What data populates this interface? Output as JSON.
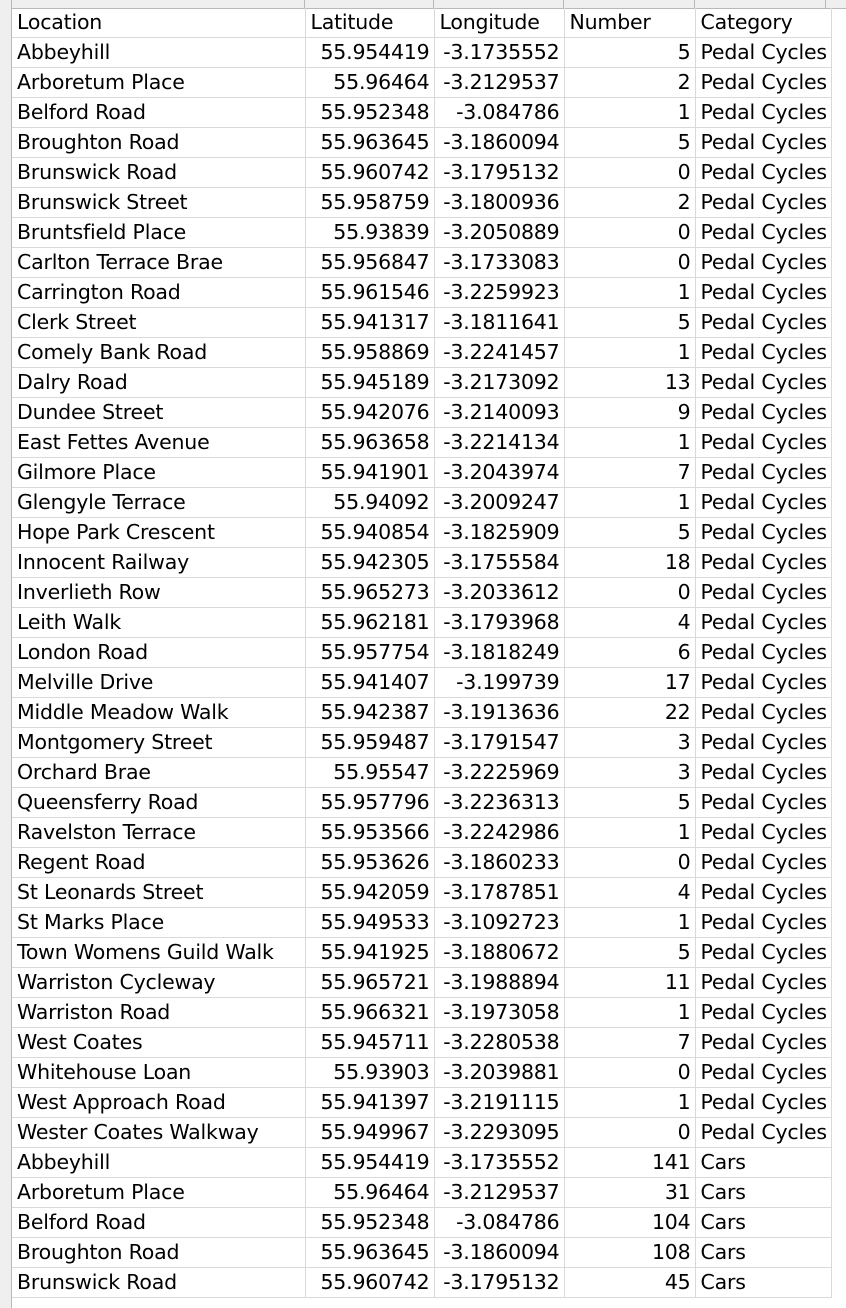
{
  "sheet": {
    "headers": [
      "Location",
      "Latitude",
      "Longitude",
      "Number",
      "Category"
    ],
    "rows": [
      [
        "Abbeyhill",
        "55.954419",
        "-3.1735552",
        "5",
        "Pedal Cycles"
      ],
      [
        "Arboretum Place",
        "55.96464",
        "-3.2129537",
        "2",
        "Pedal Cycles"
      ],
      [
        "Belford Road",
        "55.952348",
        "-3.084786",
        "1",
        "Pedal Cycles"
      ],
      [
        "Broughton Road",
        "55.963645",
        "-3.1860094",
        "5",
        "Pedal Cycles"
      ],
      [
        "Brunswick Road",
        "55.960742",
        "-3.1795132",
        "0",
        "Pedal Cycles"
      ],
      [
        "Brunswick Street",
        "55.958759",
        "-3.1800936",
        "2",
        "Pedal Cycles"
      ],
      [
        "Bruntsfield Place",
        "55.93839",
        "-3.2050889",
        "0",
        "Pedal Cycles"
      ],
      [
        "Carlton Terrace Brae",
        "55.956847",
        "-3.1733083",
        "0",
        "Pedal Cycles"
      ],
      [
        "Carrington Road",
        "55.961546",
        "-3.2259923",
        "1",
        "Pedal Cycles"
      ],
      [
        "Clerk Street",
        "55.941317",
        "-3.1811641",
        "5",
        "Pedal Cycles"
      ],
      [
        "Comely Bank Road",
        "55.958869",
        "-3.2241457",
        "1",
        "Pedal Cycles"
      ],
      [
        "Dalry Road",
        "55.945189",
        "-3.2173092",
        "13",
        "Pedal Cycles"
      ],
      [
        "Dundee Street",
        "55.942076",
        "-3.2140093",
        "9",
        "Pedal Cycles"
      ],
      [
        "East Fettes Avenue",
        "55.963658",
        "-3.2214134",
        "1",
        "Pedal Cycles"
      ],
      [
        "Gilmore Place",
        "55.941901",
        "-3.2043974",
        "7",
        "Pedal Cycles"
      ],
      [
        "Glengyle Terrace",
        "55.94092",
        "-3.2009247",
        "1",
        "Pedal Cycles"
      ],
      [
        "Hope Park Crescent",
        "55.940854",
        "-3.1825909",
        "5",
        "Pedal Cycles"
      ],
      [
        "Innocent Railway",
        "55.942305",
        "-3.1755584",
        "18",
        "Pedal Cycles"
      ],
      [
        "Inverlieth Row",
        "55.965273",
        "-3.2033612",
        "0",
        "Pedal Cycles"
      ],
      [
        "Leith Walk",
        "55.962181",
        "-3.1793968",
        "4",
        "Pedal Cycles"
      ],
      [
        "London Road",
        "55.957754",
        "-3.1818249",
        "6",
        "Pedal Cycles"
      ],
      [
        "Melville Drive",
        "55.941407",
        "-3.199739",
        "17",
        "Pedal Cycles"
      ],
      [
        "Middle Meadow Walk",
        "55.942387",
        "-3.1913636",
        "22",
        "Pedal Cycles"
      ],
      [
        "Montgomery Street",
        "55.959487",
        "-3.1791547",
        "3",
        "Pedal Cycles"
      ],
      [
        "Orchard Brae",
        "55.95547",
        "-3.2225969",
        "3",
        "Pedal Cycles"
      ],
      [
        "Queensferry Road",
        "55.957796",
        "-3.2236313",
        "5",
        "Pedal Cycles"
      ],
      [
        "Ravelston Terrace",
        "55.953566",
        "-3.2242986",
        "1",
        "Pedal Cycles"
      ],
      [
        "Regent Road",
        "55.953626",
        "-3.1860233",
        "0",
        "Pedal Cycles"
      ],
      [
        "St Leonards Street",
        "55.942059",
        "-3.1787851",
        "4",
        "Pedal Cycles"
      ],
      [
        "St Marks Place",
        "55.949533",
        "-3.1092723",
        "1",
        "Pedal Cycles"
      ],
      [
        "Town Womens Guild Walk",
        "55.941925",
        "-3.1880672",
        "5",
        "Pedal Cycles"
      ],
      [
        "Warriston Cycleway",
        "55.965721",
        "-3.1988894",
        "11",
        "Pedal Cycles"
      ],
      [
        "Warriston Road",
        "55.966321",
        "-3.1973058",
        "1",
        "Pedal Cycles"
      ],
      [
        "West Coates",
        "55.945711",
        "-3.2280538",
        "7",
        "Pedal Cycles"
      ],
      [
        "Whitehouse Loan",
        "55.93903",
        "-3.2039881",
        "0",
        "Pedal Cycles"
      ],
      [
        "West Approach Road",
        "55.941397",
        "-3.2191115",
        "1",
        "Pedal Cycles"
      ],
      [
        "Wester Coates Walkway",
        "55.949967",
        "-3.2293095",
        "0",
        "Pedal Cycles"
      ],
      [
        "Abbeyhill",
        "55.954419",
        "-3.1735552",
        "141",
        "Cars"
      ],
      [
        "Arboretum Place",
        "55.96464",
        "-3.2129537",
        "31",
        "Cars"
      ],
      [
        "Belford Road",
        "55.952348",
        "-3.084786",
        "104",
        "Cars"
      ],
      [
        "Broughton Road",
        "55.963645",
        "-3.1860094",
        "108",
        "Cars"
      ],
      [
        "Brunswick Road",
        "55.960742",
        "-3.1795132",
        "45",
        "Cars"
      ]
    ]
  }
}
